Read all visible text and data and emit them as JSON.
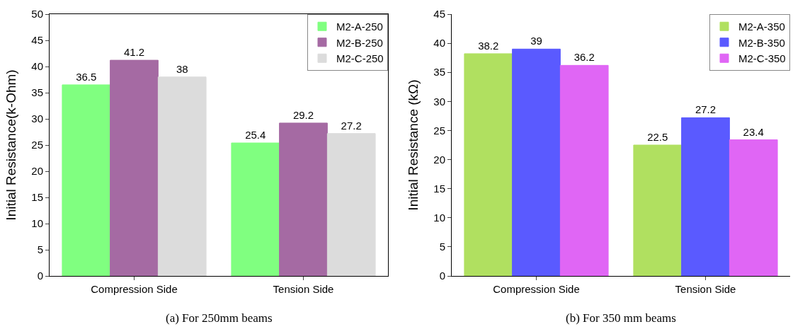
{
  "chart_data": [
    {
      "type": "bar",
      "categories": [
        "Compression Side",
        "Tension Side"
      ],
      "ylabel": "Initial Resistance(k-Ohm)",
      "ylim": [
        0,
        50
      ],
      "yticks": [
        0,
        5,
        10,
        15,
        20,
        25,
        30,
        35,
        40,
        45,
        50
      ],
      "grid": false,
      "legend": "top right",
      "data_labels": true,
      "annotations": [
        "(a) For 250mm beams"
      ],
      "series": [
        {
          "name": "M2-A-250",
          "color": "#80ff80",
          "values": [
            36.5,
            25.4
          ]
        },
        {
          "name": "M2-B-250",
          "color": "#a56aa3",
          "values": [
            41.2,
            29.2
          ]
        },
        {
          "name": "M2-C-250",
          "color": "#dcdcdc",
          "values": [
            38,
            27.2
          ]
        }
      ]
    },
    {
      "type": "bar",
      "categories": [
        "Compression Side",
        "Tension Side"
      ],
      "ylabel": "Initial Resistance (kΩ)",
      "ylim": [
        0,
        45
      ],
      "yticks": [
        0,
        5,
        10,
        15,
        20,
        25,
        30,
        35,
        40,
        45
      ],
      "grid": false,
      "legend": "top right",
      "data_labels": true,
      "annotations": [
        "(b) For 350 mm beams"
      ],
      "series": [
        {
          "name": "M2-A-350",
          "color": "#b0e060",
          "values": [
            38.2,
            22.5
          ]
        },
        {
          "name": "M2-B-350",
          "color": "#5a5aff",
          "values": [
            39,
            27.2
          ]
        },
        {
          "name": "M2-C-350",
          "color": "#e066f5",
          "values": [
            36.2,
            23.4
          ]
        }
      ]
    }
  ]
}
